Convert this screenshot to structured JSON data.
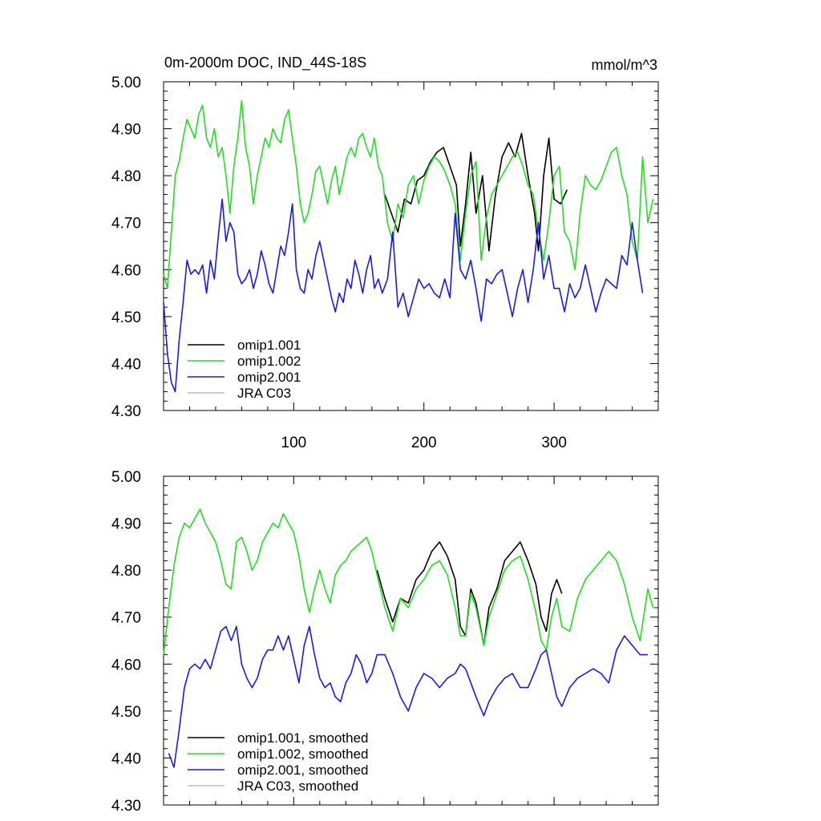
{
  "figure": {
    "title": "0m-2000m DOC, IND_44S-18S",
    "units": "mmol/m^3"
  },
  "colors": {
    "omip1_001": "#000000",
    "omip1_002": "#22dd22",
    "omip2_001": "#1a1ae6",
    "jra_c03": "#bbbbbb"
  },
  "chart_data": [
    {
      "type": "line",
      "panel": "raw",
      "title": "0m-2000m DOC, IND_44S-18S",
      "units": "mmol/m^3",
      "xlabel": "",
      "ylabel": "",
      "xlim": [
        0,
        380
      ],
      "ylim": [
        4.3,
        5.0
      ],
      "xticks": [
        100,
        200,
        300
      ],
      "xtick_labels": [
        "100",
        "200",
        "300"
      ],
      "yticks": [
        4.3,
        4.4,
        4.5,
        4.6,
        4.7,
        4.8,
        4.9,
        5.0
      ],
      "ytick_labels": [
        "4.30",
        "4.40",
        "4.50",
        "4.60",
        "4.70",
        "4.80",
        "4.90",
        "5.00"
      ],
      "legend": "bottom-left",
      "series": [
        {
          "name": "omip1.001",
          "color": "#000000",
          "x": [
            170,
            175,
            180,
            185,
            190,
            195,
            200,
            205,
            210,
            215,
            220,
            225,
            228,
            232,
            236,
            240,
            245,
            250,
            255,
            260,
            265,
            270,
            275,
            280,
            285,
            288,
            292,
            296,
            300,
            305,
            310
          ],
          "y": [
            4.76,
            4.72,
            4.68,
            4.75,
            4.74,
            4.79,
            4.8,
            4.83,
            4.85,
            4.86,
            4.82,
            4.78,
            4.65,
            4.74,
            4.85,
            4.72,
            4.8,
            4.64,
            4.76,
            4.84,
            4.87,
            4.84,
            4.89,
            4.8,
            4.72,
            4.64,
            4.8,
            4.88,
            4.75,
            4.74,
            4.77
          ]
        },
        {
          "name": "omip1.002",
          "color": "#22dd22",
          "x": [
            0,
            3,
            6,
            9,
            12,
            15,
            18,
            21,
            24,
            27,
            30,
            33,
            36,
            39,
            42,
            45,
            48,
            51,
            54,
            57,
            60,
            63,
            66,
            69,
            72,
            75,
            78,
            81,
            84,
            87,
            90,
            93,
            96,
            99,
            102,
            105,
            108,
            111,
            114,
            117,
            120,
            123,
            126,
            129,
            132,
            135,
            138,
            141,
            144,
            147,
            150,
            153,
            156,
            159,
            162,
            165,
            168,
            172,
            176,
            180,
            184,
            188,
            192,
            196,
            200,
            204,
            208,
            212,
            216,
            220,
            224,
            228,
            232,
            236,
            240,
            244,
            248,
            252,
            256,
            260,
            264,
            268,
            272,
            276,
            280,
            284,
            288,
            292,
            296,
            300,
            304,
            308,
            312,
            316,
            320,
            324,
            328,
            332,
            336,
            340,
            344,
            348,
            352,
            356,
            360,
            364,
            368,
            372,
            376
          ],
          "y": [
            4.59,
            4.56,
            4.68,
            4.8,
            4.83,
            4.88,
            4.92,
            4.9,
            4.88,
            4.93,
            4.95,
            4.88,
            4.86,
            4.9,
            4.84,
            4.86,
            4.8,
            4.72,
            4.82,
            4.88,
            4.96,
            4.86,
            4.82,
            4.74,
            4.8,
            4.84,
            4.88,
            4.86,
            4.9,
            4.88,
            4.87,
            4.92,
            4.94,
            4.88,
            4.82,
            4.74,
            4.7,
            4.72,
            4.76,
            4.81,
            4.82,
            4.78,
            4.74,
            4.79,
            4.82,
            4.76,
            4.8,
            4.84,
            4.86,
            4.84,
            4.88,
            4.89,
            4.86,
            4.84,
            4.88,
            4.82,
            4.8,
            4.7,
            4.66,
            4.74,
            4.71,
            4.78,
            4.8,
            4.74,
            4.79,
            4.82,
            4.84,
            4.83,
            4.81,
            4.78,
            4.74,
            4.62,
            4.72,
            4.8,
            4.83,
            4.62,
            4.71,
            4.76,
            4.78,
            4.8,
            4.82,
            4.84,
            4.85,
            4.82,
            4.78,
            4.76,
            4.68,
            4.62,
            4.7,
            4.8,
            4.82,
            4.68,
            4.66,
            4.6,
            4.72,
            4.8,
            4.78,
            4.77,
            4.79,
            4.82,
            4.85,
            4.86,
            4.8,
            4.76,
            4.66,
            4.62,
            4.84,
            4.7,
            4.75
          ]
        },
        {
          "name": "omip2.001",
          "color": "#1a1ae6",
          "x": [
            0,
            3,
            6,
            9,
            12,
            15,
            18,
            21,
            24,
            27,
            30,
            33,
            36,
            39,
            42,
            45,
            48,
            51,
            54,
            57,
            60,
            63,
            66,
            69,
            72,
            75,
            78,
            81,
            84,
            87,
            90,
            93,
            96,
            99,
            102,
            105,
            108,
            111,
            114,
            117,
            120,
            123,
            126,
            129,
            132,
            135,
            138,
            141,
            144,
            147,
            150,
            153,
            156,
            159,
            162,
            165,
            168,
            172,
            176,
            180,
            184,
            188,
            192,
            196,
            200,
            204,
            208,
            212,
            216,
            220,
            224,
            228,
            232,
            236,
            240,
            244,
            248,
            252,
            256,
            260,
            264,
            268,
            272,
            276,
            280,
            284,
            288,
            292,
            296,
            300,
            304,
            308,
            312,
            316,
            320,
            324,
            328,
            332,
            336,
            340,
            344,
            348,
            352,
            356,
            360,
            364,
            368
          ],
          "y": [
            4.53,
            4.42,
            4.36,
            4.34,
            4.45,
            4.53,
            4.62,
            4.59,
            4.6,
            4.59,
            4.61,
            4.55,
            4.62,
            4.58,
            4.67,
            4.75,
            4.66,
            4.7,
            4.68,
            4.59,
            4.57,
            4.58,
            4.6,
            4.56,
            4.59,
            4.64,
            4.61,
            4.57,
            4.55,
            4.6,
            4.65,
            4.63,
            4.68,
            4.74,
            4.6,
            4.56,
            4.55,
            4.6,
            4.58,
            4.63,
            4.66,
            4.62,
            4.58,
            4.54,
            4.51,
            4.55,
            4.53,
            4.58,
            4.56,
            4.62,
            4.59,
            4.55,
            4.6,
            4.63,
            4.56,
            4.58,
            4.55,
            4.58,
            4.68,
            4.52,
            4.55,
            4.5,
            4.54,
            4.58,
            4.56,
            4.57,
            4.55,
            4.54,
            4.58,
            4.54,
            4.72,
            4.6,
            4.58,
            4.62,
            4.56,
            4.49,
            4.58,
            4.57,
            4.59,
            4.6,
            4.55,
            4.5,
            4.56,
            4.6,
            4.53,
            4.6,
            4.7,
            4.58,
            4.63,
            4.56,
            4.56,
            4.51,
            4.57,
            4.54,
            4.56,
            4.61,
            4.56,
            4.51,
            4.55,
            4.58,
            4.57,
            4.56,
            4.63,
            4.61,
            4.7,
            4.62,
            4.55
          ]
        }
      ],
      "legend_labels": [
        "omip1.001",
        "omip1.002",
        "omip2.001",
        "JRA C03"
      ]
    },
    {
      "type": "line",
      "panel": "smoothed",
      "xlabel": "",
      "ylabel": "",
      "xlim": [
        0,
        380
      ],
      "ylim": [
        4.3,
        5.0
      ],
      "yticks": [
        4.3,
        4.4,
        4.5,
        4.6,
        4.7,
        4.8,
        4.9,
        5.0
      ],
      "ytick_labels": [
        "4.30",
        "4.40",
        "4.50",
        "4.60",
        "4.70",
        "4.80",
        "4.90",
        "5.00"
      ],
      "legend": "bottom-left",
      "series": [
        {
          "name": "omip1.001, smoothed",
          "color": "#000000",
          "x": [
            164,
            170,
            176,
            182,
            188,
            194,
            200,
            206,
            212,
            218,
            224,
            228,
            232,
            236,
            240,
            246,
            250,
            256,
            262,
            268,
            274,
            280,
            286,
            290,
            294,
            298,
            302,
            306
          ],
          "y": [
            4.8,
            4.74,
            4.69,
            4.74,
            4.73,
            4.78,
            4.8,
            4.84,
            4.86,
            4.83,
            4.78,
            4.68,
            4.66,
            4.76,
            4.73,
            4.64,
            4.72,
            4.76,
            4.82,
            4.84,
            4.86,
            4.82,
            4.77,
            4.7,
            4.67,
            4.75,
            4.78,
            4.75
          ]
        },
        {
          "name": "omip1.002, smoothed",
          "color": "#22dd22",
          "x": [
            0,
            4,
            8,
            12,
            16,
            20,
            24,
            28,
            32,
            36,
            40,
            44,
            48,
            52,
            56,
            60,
            64,
            68,
            72,
            76,
            80,
            84,
            88,
            92,
            96,
            100,
            104,
            108,
            112,
            116,
            120,
            124,
            128,
            132,
            136,
            140,
            144,
            148,
            152,
            156,
            160,
            164,
            170,
            176,
            182,
            188,
            194,
            200,
            206,
            212,
            218,
            224,
            228,
            232,
            236,
            240,
            246,
            250,
            256,
            262,
            268,
            274,
            280,
            286,
            290,
            294,
            298,
            302,
            306,
            312,
            318,
            324,
            330,
            336,
            342,
            348,
            354,
            360,
            366,
            372,
            376
          ],
          "y": [
            4.62,
            4.72,
            4.81,
            4.87,
            4.9,
            4.89,
            4.91,
            4.93,
            4.9,
            4.88,
            4.86,
            4.82,
            4.77,
            4.76,
            4.86,
            4.87,
            4.84,
            4.8,
            4.82,
            4.86,
            4.88,
            4.9,
            4.89,
            4.92,
            4.9,
            4.88,
            4.83,
            4.76,
            4.71,
            4.76,
            4.8,
            4.76,
            4.73,
            4.79,
            4.81,
            4.82,
            4.84,
            4.85,
            4.86,
            4.87,
            4.84,
            4.79,
            4.72,
            4.67,
            4.74,
            4.72,
            4.76,
            4.78,
            4.81,
            4.82,
            4.79,
            4.72,
            4.66,
            4.66,
            4.75,
            4.72,
            4.64,
            4.7,
            4.75,
            4.8,
            4.82,
            4.83,
            4.78,
            4.71,
            4.65,
            4.63,
            4.7,
            4.74,
            4.68,
            4.67,
            4.74,
            4.78,
            4.8,
            4.82,
            4.84,
            4.82,
            4.77,
            4.7,
            4.65,
            4.76,
            4.72
          ]
        },
        {
          "name": "omip2.001, smoothed",
          "color": "#1a1ae6",
          "x": [
            4,
            8,
            12,
            16,
            20,
            24,
            28,
            32,
            36,
            40,
            44,
            48,
            52,
            56,
            60,
            64,
            68,
            72,
            76,
            80,
            84,
            88,
            92,
            96,
            100,
            104,
            108,
            112,
            116,
            120,
            124,
            128,
            132,
            136,
            140,
            144,
            148,
            152,
            156,
            160,
            164,
            170,
            176,
            182,
            188,
            194,
            200,
            206,
            212,
            218,
            224,
            228,
            232,
            236,
            240,
            246,
            250,
            256,
            262,
            268,
            274,
            280,
            286,
            290,
            294,
            298,
            302,
            306,
            312,
            318,
            324,
            330,
            336,
            342,
            348,
            354,
            360,
            366,
            372
          ],
          "y": [
            4.41,
            4.38,
            4.46,
            4.55,
            4.59,
            4.6,
            4.59,
            4.61,
            4.59,
            4.63,
            4.67,
            4.68,
            4.65,
            4.68,
            4.6,
            4.57,
            4.55,
            4.57,
            4.61,
            4.63,
            4.63,
            4.66,
            4.63,
            4.66,
            4.61,
            4.56,
            4.64,
            4.68,
            4.62,
            4.57,
            4.55,
            4.56,
            4.53,
            4.52,
            4.56,
            4.58,
            4.62,
            4.6,
            4.56,
            4.58,
            4.62,
            4.62,
            4.58,
            4.53,
            4.5,
            4.55,
            4.58,
            4.57,
            4.55,
            4.57,
            4.58,
            4.6,
            4.59,
            4.56,
            4.53,
            4.49,
            4.52,
            4.55,
            4.57,
            4.58,
            4.55,
            4.55,
            4.59,
            4.62,
            4.63,
            4.58,
            4.53,
            4.51,
            4.55,
            4.57,
            4.58,
            4.59,
            4.58,
            4.56,
            4.63,
            4.66,
            4.64,
            4.62,
            4.62
          ]
        }
      ],
      "legend_labels": [
        "omip1.001, smoothed",
        "omip1.002, smoothed",
        "omip2.001, smoothed",
        "JRA C03, smoothed"
      ]
    }
  ]
}
